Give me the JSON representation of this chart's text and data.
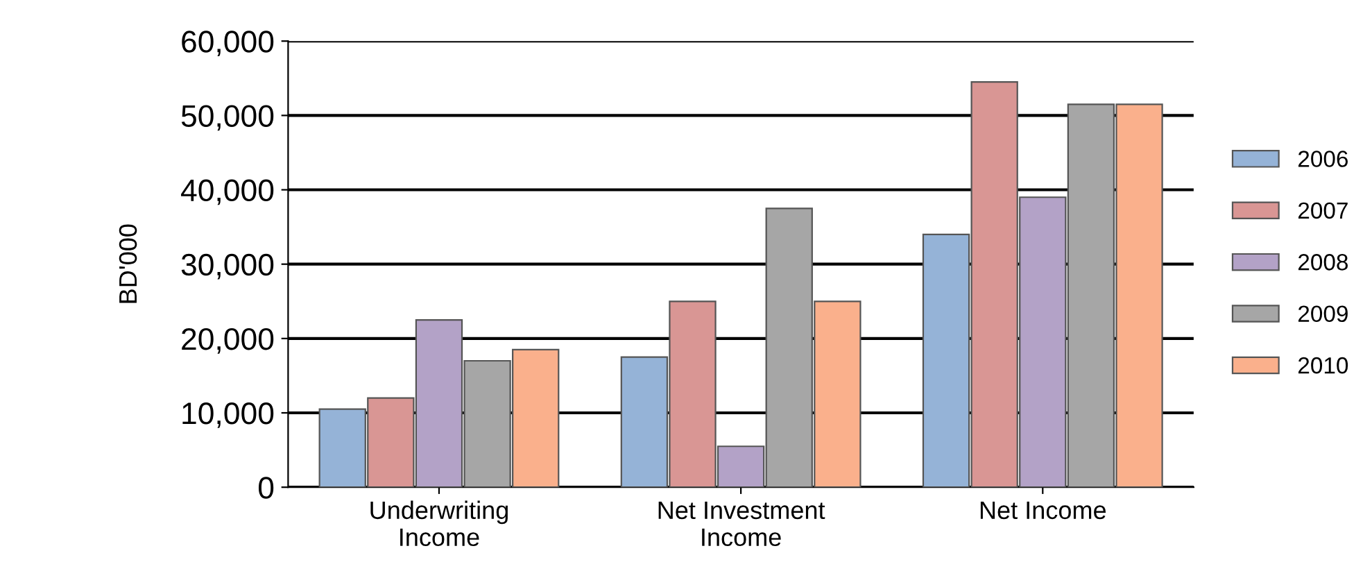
{
  "chart_data": {
    "type": "bar",
    "ylabel": "BD'000",
    "categories": [
      "Underwriting\nIncome",
      "Net Investment\nIncome",
      "Net Income"
    ],
    "series": [
      {
        "name": "2006",
        "color": "#95b3d7",
        "values": [
          10500,
          17500,
          34000
        ]
      },
      {
        "name": "2007",
        "color": "#d99694",
        "values": [
          12000,
          25000,
          54500
        ]
      },
      {
        "name": "2008",
        "color": "#b3a2c7",
        "values": [
          22500,
          5500,
          39000
        ]
      },
      {
        "name": "2009",
        "color": "#a6a6a6",
        "values": [
          17000,
          37500,
          51500
        ]
      },
      {
        "name": "2010",
        "color": "#fab08c",
        "values": [
          18500,
          25000,
          51500
        ]
      }
    ],
    "ylim": [
      0,
      60000
    ],
    "yticks": [
      {
        "value": 0,
        "label": "0"
      },
      {
        "value": 10000,
        "label": "10,000"
      },
      {
        "value": 20000,
        "label": "20,000"
      },
      {
        "value": 30000,
        "label": "30,000"
      },
      {
        "value": 40000,
        "label": "40,000"
      },
      {
        "value": 50000,
        "label": "50,000"
      },
      {
        "value": 60000,
        "label": "60,000"
      }
    ],
    "grid": "y",
    "legend": "right"
  }
}
